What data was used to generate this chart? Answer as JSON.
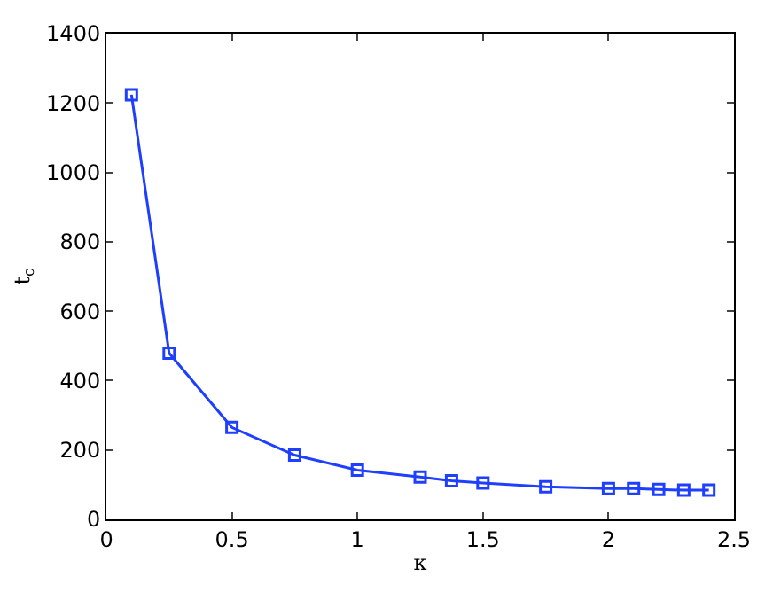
{
  "chart_data": {
    "type": "line",
    "xlabel": "κ",
    "ylabel": "t$_{c}$",
    "x": [
      0.1,
      0.25,
      0.5,
      0.75,
      1.0,
      1.25,
      1.375,
      1.5,
      1.75,
      2.0,
      2.1,
      2.2,
      2.3,
      2.4
    ],
    "series": [
      {
        "color": "#1f3fff",
        "values": [
          1224,
          479,
          265,
          185,
          142,
          122,
          111,
          105,
          94,
          89,
          89,
          86,
          84,
          84
        ]
      }
    ],
    "xlim": [
      0,
      2.5
    ],
    "ylim": [
      0,
      1400
    ],
    "xticks": [
      0,
      0.5,
      1,
      1.5,
      2,
      2.5
    ],
    "yticks": [
      0,
      200,
      400,
      600,
      800,
      1000,
      1200,
      1400
    ],
    "marker": "square",
    "line_style": "solid",
    "legend": false
  }
}
